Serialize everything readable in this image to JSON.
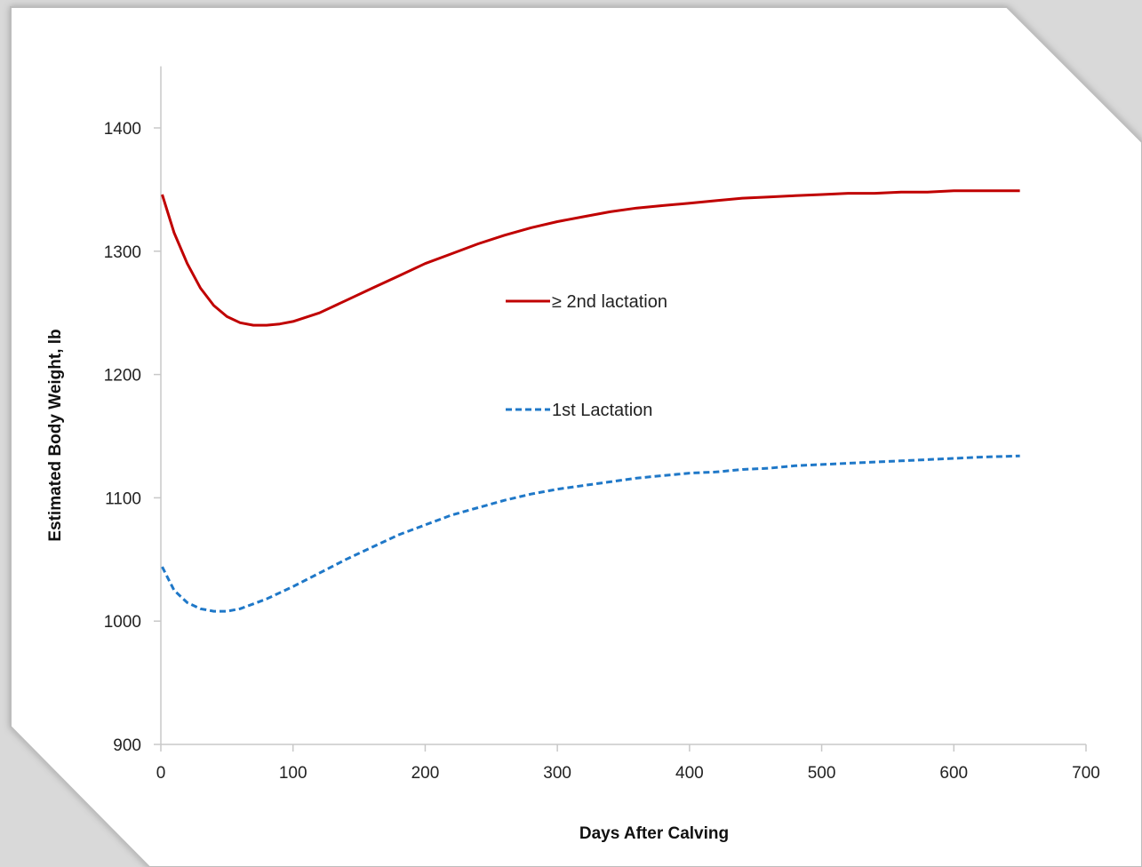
{
  "chart_data": {
    "type": "line",
    "title": "",
    "xlabel": "Days After Calving",
    "ylabel": "Estimated Body Weight, lb",
    "xlim": [
      0,
      700
    ],
    "ylim": [
      900,
      1450
    ],
    "x_ticks": [
      0,
      100,
      200,
      300,
      400,
      500,
      600,
      700
    ],
    "y_ticks": [
      900,
      1000,
      1100,
      1200,
      1300,
      1400
    ],
    "grid": false,
    "legend_position": "center",
    "series": [
      {
        "name": "≥ 2nd lactation",
        "color": "#c00000",
        "style": "solid",
        "x": [
          1,
          10,
          20,
          30,
          40,
          50,
          60,
          70,
          80,
          90,
          100,
          120,
          140,
          160,
          180,
          200,
          220,
          240,
          260,
          280,
          300,
          320,
          340,
          360,
          380,
          400,
          420,
          440,
          460,
          480,
          500,
          520,
          540,
          560,
          580,
          600,
          620,
          650
        ],
        "y": [
          1346,
          1315,
          1290,
          1270,
          1256,
          1247,
          1242,
          1240,
          1240,
          1241,
          1243,
          1250,
          1260,
          1270,
          1280,
          1290,
          1298,
          1306,
          1313,
          1319,
          1324,
          1328,
          1332,
          1335,
          1337,
          1339,
          1341,
          1343,
          1344,
          1345,
          1346,
          1347,
          1347,
          1348,
          1348,
          1349,
          1349,
          1349
        ]
      },
      {
        "name": "1st Lactation",
        "color": "#1f78c8",
        "style": "dashed",
        "x": [
          1,
          10,
          20,
          30,
          40,
          50,
          60,
          70,
          80,
          90,
          100,
          120,
          140,
          160,
          180,
          200,
          220,
          240,
          260,
          280,
          300,
          320,
          340,
          360,
          380,
          400,
          420,
          440,
          460,
          480,
          500,
          520,
          540,
          560,
          580,
          600,
          620,
          650
        ],
        "y": [
          1044,
          1025,
          1015,
          1010,
          1008,
          1008,
          1010,
          1014,
          1018,
          1023,
          1028,
          1039,
          1050,
          1060,
          1070,
          1078,
          1086,
          1092,
          1098,
          1103,
          1107,
          1110,
          1113,
          1116,
          1118,
          1120,
          1121,
          1123,
          1124,
          1126,
          1127,
          1128,
          1129,
          1130,
          1131,
          1132,
          1133,
          1134
        ]
      }
    ]
  }
}
